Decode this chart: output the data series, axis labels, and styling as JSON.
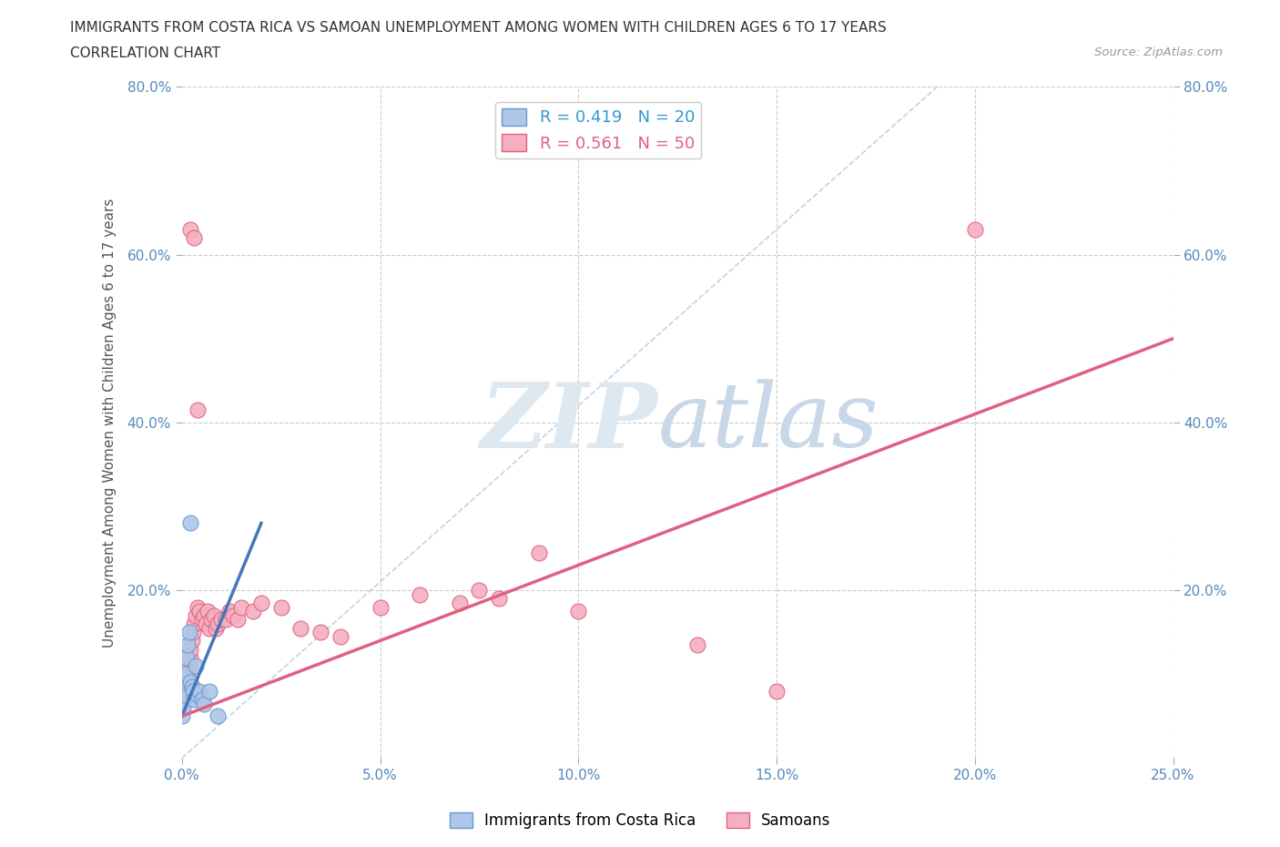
{
  "title_line1": "IMMIGRANTS FROM COSTA RICA VS SAMOAN UNEMPLOYMENT AMONG WOMEN WITH CHILDREN AGES 6 TO 17 YEARS",
  "title_line2": "CORRELATION CHART",
  "source_text": "Source: ZipAtlas.com",
  "ylabel": "Unemployment Among Women with Children Ages 6 to 17 years",
  "xlim": [
    0.0,
    0.25
  ],
  "ylim": [
    0.0,
    0.8
  ],
  "xtick_vals": [
    0.0,
    0.05,
    0.1,
    0.15,
    0.2,
    0.25
  ],
  "ytick_vals": [
    0.2,
    0.4,
    0.6,
    0.8
  ],
  "xticklabels": [
    "0.0%",
    "5.0%",
    "10.0%",
    "15.0%",
    "20.0%",
    "25.0%"
  ],
  "yticklabels": [
    "20.0%",
    "40.0%",
    "60.0%",
    "80.0%"
  ],
  "costa_rica_R": 0.419,
  "costa_rica_N": 20,
  "samoan_R": 0.561,
  "samoan_N": 50,
  "costa_rica_color": "#aec6e8",
  "samoan_color": "#f4b0c0",
  "costa_rica_edge": "#6699cc",
  "samoan_edge": "#e06080",
  "trend_costa_rica_color": "#4477bb",
  "trend_samoan_color": "#e06080",
  "background_color": "#ffffff",
  "cr_x": [
    0.0,
    0.0003,
    0.0005,
    0.0008,
    0.001,
    0.0012,
    0.0015,
    0.0018,
    0.002,
    0.0022,
    0.0025,
    0.0028,
    0.003,
    0.0035,
    0.004,
    0.0045,
    0.005,
    0.0055,
    0.007,
    0.009
  ],
  "cr_y": [
    0.05,
    0.06,
    0.075,
    0.09,
    0.1,
    0.12,
    0.135,
    0.15,
    0.28,
    0.09,
    0.085,
    0.08,
    0.07,
    0.11,
    0.075,
    0.08,
    0.07,
    0.065,
    0.08,
    0.05
  ],
  "sa_x": [
    0.0,
    0.0003,
    0.0005,
    0.0008,
    0.001,
    0.0012,
    0.0015,
    0.0018,
    0.002,
    0.0022,
    0.0025,
    0.0028,
    0.003,
    0.0035,
    0.004,
    0.0045,
    0.005,
    0.0055,
    0.006,
    0.0065,
    0.007,
    0.0075,
    0.008,
    0.0085,
    0.009,
    0.01,
    0.011,
    0.012,
    0.013,
    0.014,
    0.015,
    0.018,
    0.02,
    0.025,
    0.03,
    0.035,
    0.04,
    0.05,
    0.06,
    0.07,
    0.075,
    0.08,
    0.09,
    0.1,
    0.13,
    0.15,
    0.2,
    0.002,
    0.003,
    0.004
  ],
  "sa_y": [
    0.06,
    0.065,
    0.07,
    0.08,
    0.09,
    0.095,
    0.1,
    0.11,
    0.12,
    0.13,
    0.14,
    0.15,
    0.16,
    0.17,
    0.18,
    0.175,
    0.165,
    0.17,
    0.16,
    0.175,
    0.155,
    0.165,
    0.17,
    0.155,
    0.16,
    0.165,
    0.165,
    0.175,
    0.17,
    0.165,
    0.18,
    0.175,
    0.185,
    0.18,
    0.155,
    0.15,
    0.145,
    0.18,
    0.195,
    0.185,
    0.2,
    0.19,
    0.245,
    0.175,
    0.135,
    0.08,
    0.63,
    0.63,
    0.62,
    0.415
  ]
}
